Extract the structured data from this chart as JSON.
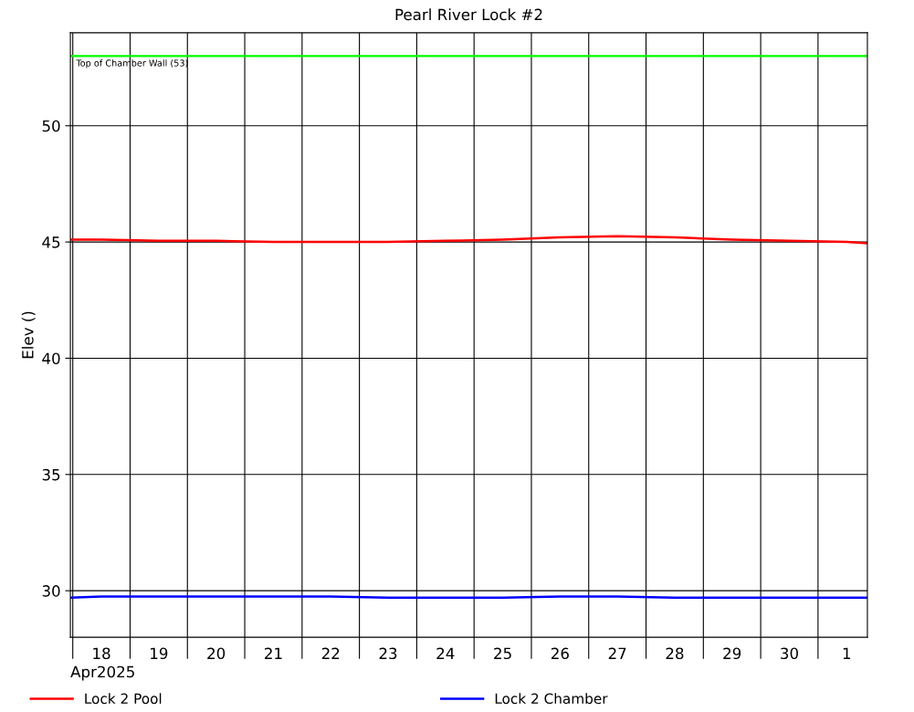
{
  "chart_data": {
    "type": "line",
    "title": "Pearl River Lock #2",
    "ylabel": "Elev ()",
    "xlabel": "Apr2025",
    "xlim": [
      "2025-04-17T23:00",
      "2025-05-01T20:40"
    ],
    "xticks": [
      {
        "value": "2025-04-18T00:00",
        "label": null
      },
      {
        "value": "2025-04-18T12:00",
        "label": "18"
      },
      {
        "value": "2025-04-19T00:00",
        "label": null
      },
      {
        "value": "2025-04-19T12:00",
        "label": "19"
      },
      {
        "value": "2025-04-20T00:00",
        "label": null
      },
      {
        "value": "2025-04-20T12:00",
        "label": "20"
      },
      {
        "value": "2025-04-21T00:00",
        "label": null
      },
      {
        "value": "2025-04-21T12:00",
        "label": "21"
      },
      {
        "value": "2025-04-22T00:00",
        "label": null
      },
      {
        "value": "2025-04-22T12:00",
        "label": "22"
      },
      {
        "value": "2025-04-23T00:00",
        "label": null
      },
      {
        "value": "2025-04-23T12:00",
        "label": "23"
      },
      {
        "value": "2025-04-24T00:00",
        "label": null
      },
      {
        "value": "2025-04-24T12:00",
        "label": "24"
      },
      {
        "value": "2025-04-25T00:00",
        "label": null
      },
      {
        "value": "2025-04-25T12:00",
        "label": "25"
      },
      {
        "value": "2025-04-26T00:00",
        "label": null
      },
      {
        "value": "2025-04-26T12:00",
        "label": "26"
      },
      {
        "value": "2025-04-27T00:00",
        "label": null
      },
      {
        "value": "2025-04-27T12:00",
        "label": "27"
      },
      {
        "value": "2025-04-28T00:00",
        "label": null
      },
      {
        "value": "2025-04-28T12:00",
        "label": "28"
      },
      {
        "value": "2025-04-29T00:00",
        "label": null
      },
      {
        "value": "2025-04-29T12:00",
        "label": "29"
      },
      {
        "value": "2025-04-30T00:00",
        "label": null
      },
      {
        "value": "2025-04-30T12:00",
        "label": "30"
      },
      {
        "value": "2025-05-01T00:00",
        "label": null
      },
      {
        "value": "2025-05-01T12:00",
        "label": "1"
      }
    ],
    "ylim": [
      28,
      54
    ],
    "yticks": [
      30,
      35,
      40,
      45,
      50
    ],
    "grid": true,
    "legend": "bottom",
    "x": [
      "2025-04-17T23:00",
      "2025-04-18T12:00",
      "2025-04-19T12:00",
      "2025-04-20T12:00",
      "2025-04-21T12:00",
      "2025-04-22T12:00",
      "2025-04-23T12:00",
      "2025-04-24T12:00",
      "2025-04-25T12:00",
      "2025-04-26T12:00",
      "2025-04-27T12:00",
      "2025-04-28T12:00",
      "2025-04-29T12:00",
      "2025-04-30T12:00",
      "2025-05-01T12:00",
      "2025-05-01T20:40"
    ],
    "series": [
      {
        "name": "Lock 2 Pool",
        "color": "#ff0000",
        "values": [
          45.1,
          45.1,
          45.05,
          45.05,
          45.0,
          45.0,
          45.0,
          45.05,
          45.1,
          45.2,
          45.25,
          45.2,
          45.1,
          45.05,
          45.0,
          44.95
        ]
      },
      {
        "name": "Lock 2 Chamber",
        "color": "#0000ff",
        "values": [
          29.7,
          29.75,
          29.75,
          29.75,
          29.75,
          29.75,
          29.7,
          29.7,
          29.7,
          29.75,
          29.75,
          29.7,
          29.7,
          29.7,
          29.7,
          29.7
        ]
      }
    ],
    "ref_lines": [
      {
        "axis": "y",
        "value": 53,
        "label": "Top of Chamber Wall (53)",
        "color": "#00ff00"
      }
    ]
  }
}
